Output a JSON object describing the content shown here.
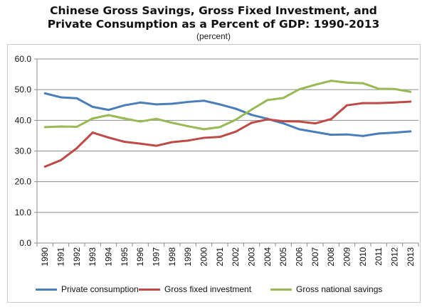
{
  "chart_data": {
    "type": "line",
    "title_line1": "Chinese Gross Savings, Gross Fixed Investment, and",
    "title_line2": "Private Consumption as a Percent of GDP: 1990-2013",
    "subtitle": "(percent)",
    "xlabel": "",
    "ylabel": "",
    "ylim": [
      0,
      60
    ],
    "yticks": [
      "0.0",
      "10.0",
      "20.0",
      "30.0",
      "40.0",
      "50.0",
      "60.0"
    ],
    "x": [
      "1990",
      "1991",
      "1992",
      "1993",
      "1994",
      "1995",
      "1996",
      "1997",
      "1998",
      "1999",
      "2000",
      "2001",
      "2002",
      "2003",
      "2004",
      "2005",
      "2006",
      "2007",
      "2008",
      "2009",
      "2010",
      "2011",
      "2012",
      "2013"
    ],
    "grid": true,
    "legend_position": "bottom",
    "series": [
      {
        "name": "Private consumption",
        "color": "#4a7ebb",
        "values": [
          48.8,
          47.5,
          47.2,
          44.4,
          43.4,
          44.9,
          45.8,
          45.2,
          45.4,
          46.0,
          46.4,
          45.2,
          43.8,
          41.8,
          40.5,
          39.0,
          37.1,
          36.2,
          35.3,
          35.4,
          34.9,
          35.7,
          36.0,
          36.4
        ]
      },
      {
        "name": "Gross fixed investment",
        "color": "#be4b48",
        "values": [
          24.9,
          27.0,
          30.9,
          36.0,
          34.4,
          33.0,
          32.4,
          31.7,
          32.9,
          33.4,
          34.3,
          34.6,
          36.3,
          39.2,
          40.3,
          39.7,
          39.6,
          39.0,
          40.4,
          44.9,
          45.6,
          45.6,
          45.8,
          46.1
        ]
      },
      {
        "name": "Gross national savings",
        "color": "#98b954",
        "values": [
          37.8,
          38.0,
          37.9,
          40.6,
          41.7,
          40.6,
          39.6,
          40.5,
          39.2,
          38.1,
          37.1,
          37.8,
          40.2,
          43.5,
          46.6,
          47.3,
          50.1,
          51.6,
          52.9,
          52.3,
          52.1,
          50.3,
          50.2,
          49.3
        ]
      }
    ]
  }
}
